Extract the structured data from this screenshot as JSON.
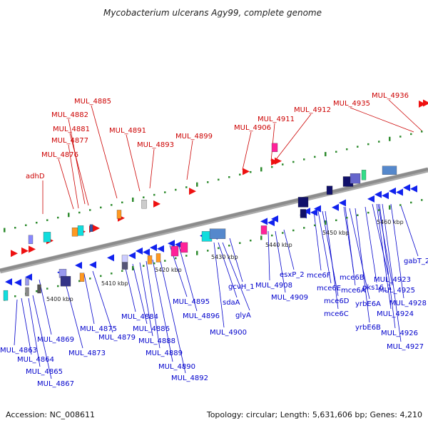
{
  "title": "Mycobacterium ulcerans Agy99, complete genome",
  "footer": {
    "accession": "Accession: NC_008611",
    "summary": "Topology: circular; Length: 5,631,606 bp; Genes: 4,210"
  },
  "colors": {
    "upper_labels": "#cc0000",
    "lower_labels": "#0000cc",
    "backbone": "#8c8c8c",
    "tick_dots": "#2e8b2e"
  },
  "kbp_marks": [
    "5400 kbp",
    "5410 kbp",
    "5420 kbp",
    "5430 kbp",
    "5440 kbp",
    "5450 kbp",
    "5460 kbp"
  ],
  "upper_labels": [
    "adhD",
    "MUL_4876",
    "MUL_4877",
    "MUL_4881",
    "MUL_4882",
    "MUL_4885",
    "MUL_4891",
    "MUL_4893",
    "MUL_4899",
    "MUL_4906",
    "MUL_4911",
    "MUL_4912",
    "MUL_4935",
    "MUL_4936"
  ],
  "lower_labels": [
    "MUL_4863",
    "MUL_4864",
    "MUL_4865",
    "MUL_4867",
    "MUL_4869",
    "MUL_4873",
    "MUL_4875",
    "MUL_4879",
    "MUL_4884",
    "MUL_4886",
    "MUL_4888",
    "MUL_4889",
    "MUL_4890",
    "MUL_4892",
    "MUL_4895",
    "MUL_4896",
    "MUL_4900",
    "sdaA",
    "gcvH_1",
    "glyA",
    "MUL_4908",
    "MUL_4909",
    "esxP_2",
    "mce6F",
    "mce6E",
    "mce6D",
    "mce6C",
    "mce6B",
    "mce6A",
    "yrbE6B",
    "yrbE6A",
    "pks16_1",
    "MUL_4923",
    "MUL_4924",
    "MUL_4925",
    "MUL_4926",
    "MUL_4927",
    "MUL_4928",
    "gabT_2"
  ]
}
